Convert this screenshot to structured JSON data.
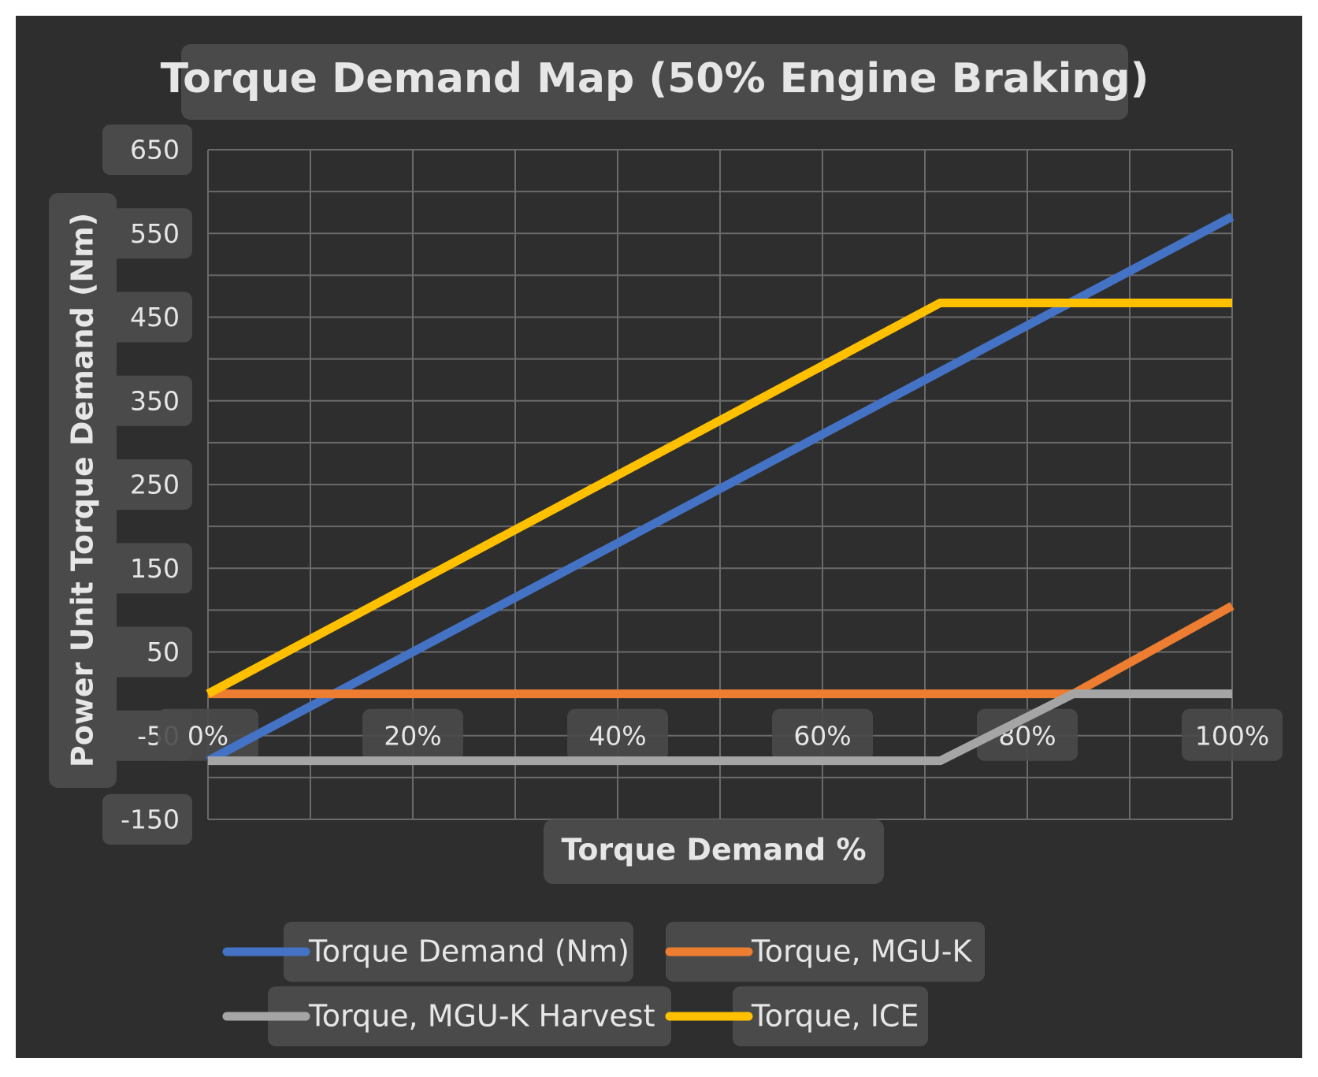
{
  "chart_data": {
    "type": "line",
    "title": "Torque Demand Map (50% Engine Braking)",
    "xlabel": "Torque Demand %",
    "ylabel": "Power Unit Torque Demand (Nm)",
    "xlim": [
      0,
      100
    ],
    "ylim": [
      -150,
      650
    ],
    "x_ticks": [
      0,
      20,
      40,
      60,
      80,
      100
    ],
    "x_tick_labels": [
      "0%",
      "20%",
      "40%",
      "60%",
      "80%",
      "100%"
    ],
    "y_ticks": [
      650,
      550,
      450,
      350,
      250,
      150,
      50,
      -50,
      -150
    ],
    "y_tick_labels": [
      "650",
      "550",
      "450",
      "350",
      "250",
      "150",
      "50",
      "-50",
      "-150"
    ],
    "grid": true,
    "legend_position": "bottom",
    "series": [
      {
        "name": "Torque Demand (Nm)",
        "color": "#4472c4",
        "x": [
          0,
          100
        ],
        "y": [
          -80,
          570
        ]
      },
      {
        "name": "Torque, MGU-K",
        "color": "#ed7d31",
        "x": [
          0,
          84.5,
          100
        ],
        "y": [
          0,
          0,
          105
        ]
      },
      {
        "name": "Torque, MGU-K Harvest",
        "color": "#a5a5a5",
        "x": [
          0,
          71.5,
          84.5,
          100
        ],
        "y": [
          -80,
          -80,
          0,
          0
        ]
      },
      {
        "name": "Torque, ICE",
        "color": "#ffc000",
        "x": [
          0,
          71.5,
          100
        ],
        "y": [
          0,
          467,
          467
        ]
      }
    ]
  }
}
